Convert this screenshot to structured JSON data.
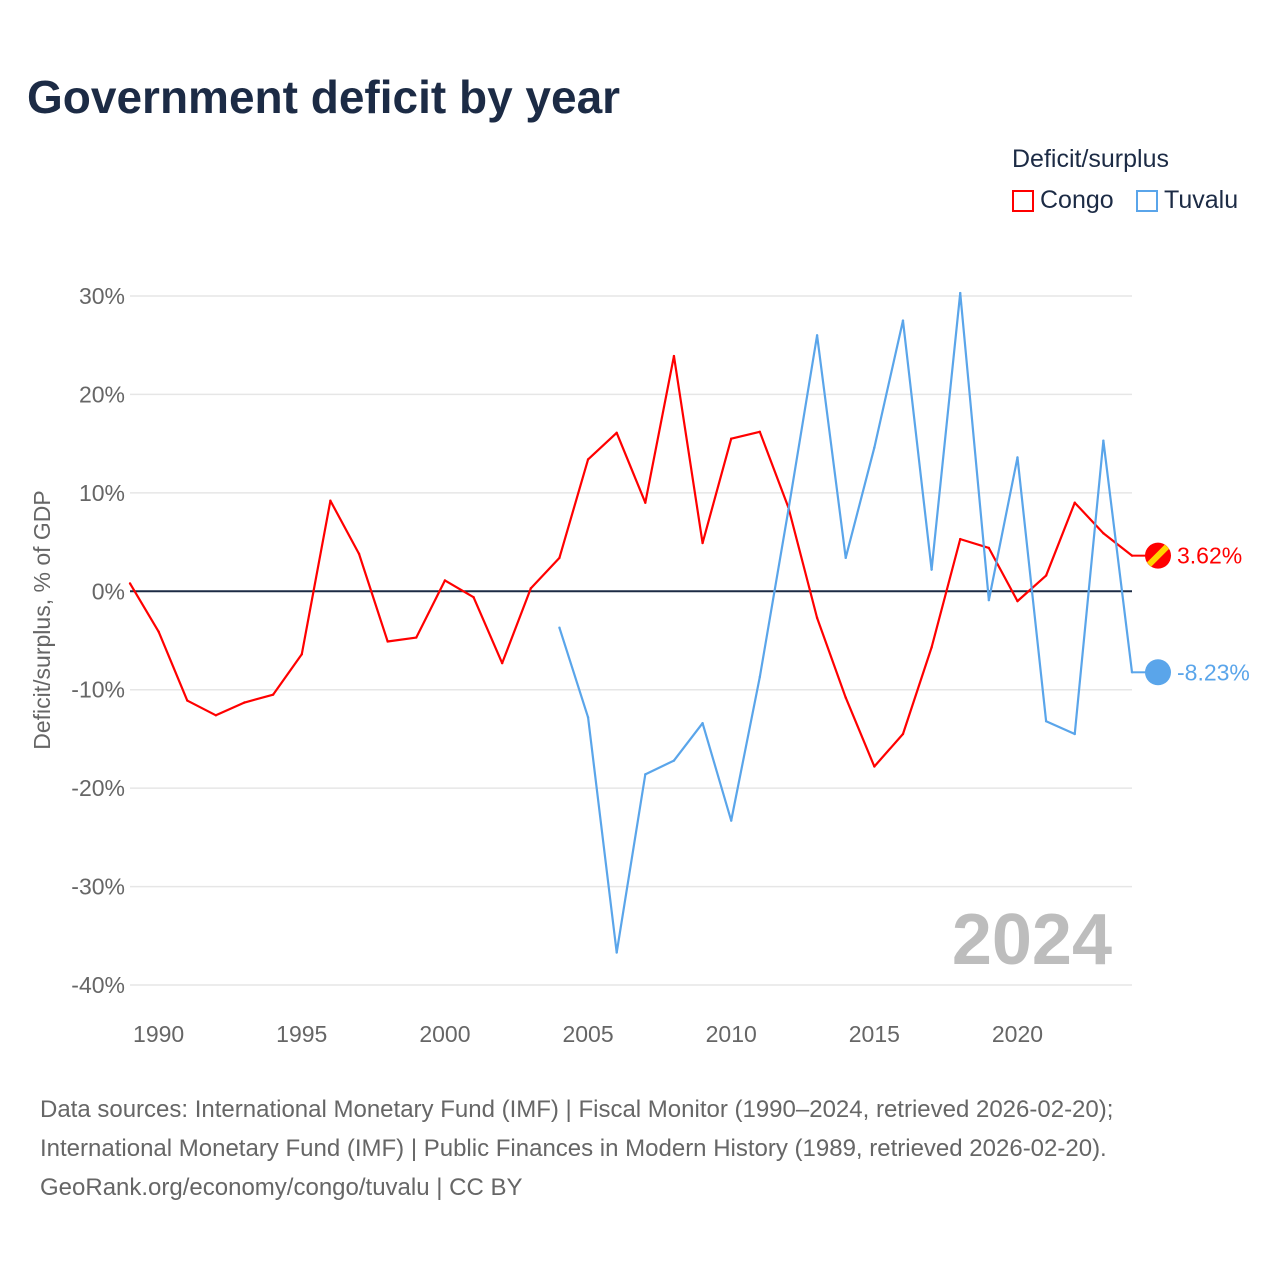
{
  "title": "Government deficit by year",
  "legend_title": "Deficit/surplus",
  "footer": [
    "Data sources: International Monetary Fund (IMF) | Fiscal Monitor (1990–2024, retrieved 2026-02-20);",
    "International Monetary Fund (IMF) | Public Finances in Modern History (1989, retrieved 2026-02-20).",
    "GeoRank.org/economy/congo/tuvalu | CC BY"
  ],
  "chart_data": {
    "type": "line",
    "title": "Government deficit by year",
    "xlabel": "",
    "ylabel": "Deficit/surplus, % of GDP",
    "xlim": [
      1989,
      2024
    ],
    "ylim": [
      -40,
      30
    ],
    "xticks": [
      1990,
      1995,
      2000,
      2005,
      2010,
      2015,
      2020
    ],
    "yticks": [
      -40,
      -30,
      -20,
      -10,
      0,
      10,
      20,
      30
    ],
    "ytick_labels": [
      "-40%",
      "-30%",
      "-20%",
      "-10%",
      "0%",
      "10%",
      "20%",
      "30%"
    ],
    "watermark": "2024",
    "legend_position": "top-right",
    "series": [
      {
        "name": "Congo",
        "color": "#ff0000",
        "end_label": "3.62%",
        "x": [
          1989,
          1990,
          1991,
          1992,
          1993,
          1994,
          1995,
          1996,
          1997,
          1998,
          1999,
          2000,
          2001,
          2002,
          2003,
          2004,
          2005,
          2006,
          2007,
          2008,
          2009,
          2010,
          2011,
          2012,
          2013,
          2014,
          2015,
          2016,
          2017,
          2018,
          2019,
          2020,
          2021,
          2022,
          2023,
          2024
        ],
        "values": [
          0.8,
          -4.1,
          -11.1,
          -12.6,
          -11.3,
          -10.5,
          -6.4,
          9.2,
          3.8,
          -5.1,
          -4.7,
          1.1,
          -0.6,
          -7.3,
          0.3,
          3.4,
          13.4,
          16.1,
          9.0,
          23.9,
          4.9,
          15.5,
          16.2,
          8.5,
          -2.7,
          -10.8,
          -17.8,
          -14.5,
          -5.7,
          5.3,
          4.4,
          -1.0,
          1.6,
          9.0,
          5.9,
          3.62
        ]
      },
      {
        "name": "Tuvalu",
        "color": "#5aa5ea",
        "end_label": "-8.23%",
        "x": [
          2004,
          2005,
          2006,
          2007,
          2008,
          2009,
          2010,
          2011,
          2012,
          2013,
          2014,
          2015,
          2016,
          2017,
          2018,
          2019,
          2020,
          2021,
          2022,
          2023,
          2024
        ],
        "values": [
          -3.7,
          -12.8,
          -36.7,
          -18.6,
          -17.2,
          -13.4,
          -23.3,
          -8.7,
          8.3,
          26.0,
          3.4,
          14.6,
          27.5,
          2.2,
          30.3,
          -0.9,
          13.6,
          -13.2,
          -14.5,
          15.3,
          -8.23
        ]
      }
    ]
  }
}
